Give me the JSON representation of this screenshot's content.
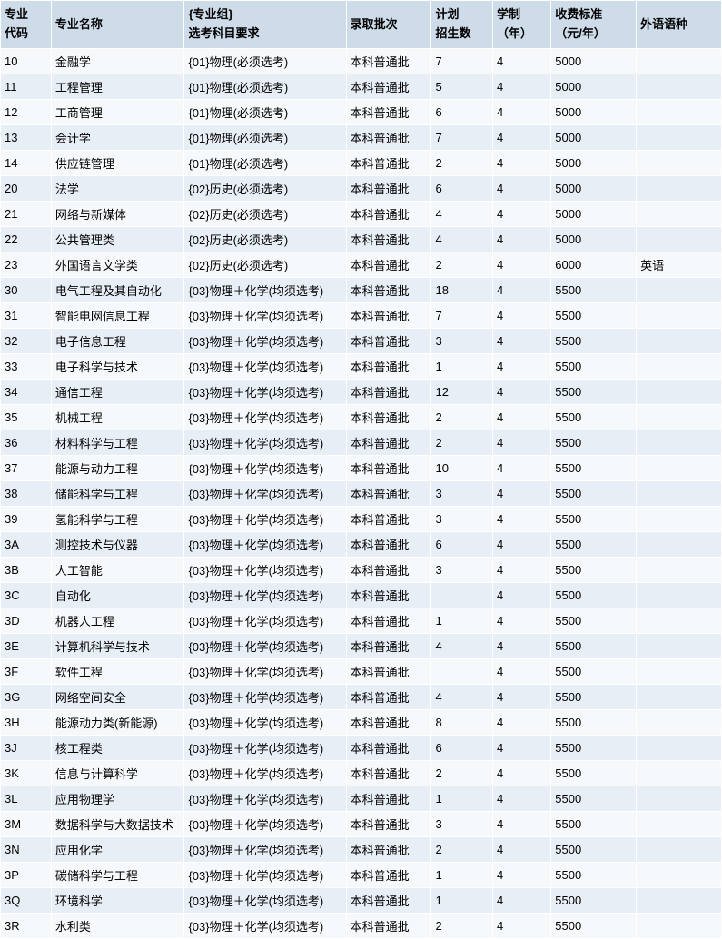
{
  "table": {
    "header_bg": "#cedbe9",
    "row_odd_bg": "#f6f9fc",
    "row_even_bg": "#e8eef6",
    "border_color": "#ffffff",
    "font_size": 13,
    "columns": [
      {
        "label_line1": "专业",
        "label_line2": "代码",
        "width": 44
      },
      {
        "label_line1": "专业名称",
        "label_line2": "",
        "width": 130
      },
      {
        "label_line1": "{专业组}",
        "label_line2": "选考科目要求",
        "width": 160
      },
      {
        "label_line1": "录取批次",
        "label_line2": "",
        "width": 80
      },
      {
        "label_line1": "计划",
        "label_line2": "招生数",
        "width": 55
      },
      {
        "label_line1": "学制",
        "label_line2": "（年）",
        "width": 52
      },
      {
        "label_line1": "收费标准",
        "label_line2": "（元/年）",
        "width": 80
      },
      {
        "label_line1": "外语语种",
        "label_line2": "",
        "width": 80
      }
    ],
    "rows": [
      [
        "10",
        "金融学",
        "{01}物理(必须选考)",
        "本科普通批",
        "7",
        "4",
        "5000",
        ""
      ],
      [
        "11",
        "工程管理",
        "{01}物理(必须选考)",
        "本科普通批",
        "5",
        "4",
        "5000",
        ""
      ],
      [
        "12",
        "工商管理",
        "{01}物理(必须选考)",
        "本科普通批",
        "6",
        "4",
        "5000",
        ""
      ],
      [
        "13",
        "会计学",
        "{01}物理(必须选考)",
        "本科普通批",
        "7",
        "4",
        "5000",
        ""
      ],
      [
        "14",
        "供应链管理",
        "{01}物理(必须选考)",
        "本科普通批",
        "2",
        "4",
        "5000",
        ""
      ],
      [
        "20",
        "法学",
        "{02}历史(必须选考)",
        "本科普通批",
        "6",
        "4",
        "5000",
        ""
      ],
      [
        "21",
        "网络与新媒体",
        "{02}历史(必须选考)",
        "本科普通批",
        "4",
        "4",
        "5000",
        ""
      ],
      [
        "22",
        "公共管理类",
        "{02}历史(必须选考)",
        "本科普通批",
        "4",
        "4",
        "5000",
        ""
      ],
      [
        "23",
        "外国语言文学类",
        "{02}历史(必须选考)",
        "本科普通批",
        "2",
        "4",
        "6000",
        "英语"
      ],
      [
        "30",
        "电气工程及其自动化",
        "{03}物理＋化学(均须选考)",
        "本科普通批",
        "18",
        "4",
        "5500",
        ""
      ],
      [
        "31",
        "智能电网信息工程",
        "{03}物理＋化学(均须选考)",
        "本科普通批",
        "7",
        "4",
        "5500",
        ""
      ],
      [
        "32",
        "电子信息工程",
        "{03}物理＋化学(均须选考)",
        "本科普通批",
        "3",
        "4",
        "5500",
        ""
      ],
      [
        "33",
        "电子科学与技术",
        "{03}物理＋化学(均须选考)",
        "本科普通批",
        "1",
        "4",
        "5500",
        ""
      ],
      [
        "34",
        "通信工程",
        "{03}物理＋化学(均须选考)",
        "本科普通批",
        "12",
        "4",
        "5500",
        ""
      ],
      [
        "35",
        "机械工程",
        "{03}物理＋化学(均须选考)",
        "本科普通批",
        "2",
        "4",
        "5500",
        ""
      ],
      [
        "36",
        "材料科学与工程",
        "{03}物理＋化学(均须选考)",
        "本科普通批",
        "2",
        "4",
        "5500",
        ""
      ],
      [
        "37",
        "能源与动力工程",
        "{03}物理＋化学(均须选考)",
        "本科普通批",
        "10",
        "4",
        "5500",
        ""
      ],
      [
        "38",
        "储能科学与工程",
        "{03}物理＋化学(均须选考)",
        "本科普通批",
        "3",
        "4",
        "5500",
        ""
      ],
      [
        "39",
        "氢能科学与工程",
        "{03}物理＋化学(均须选考)",
        "本科普通批",
        "3",
        "4",
        "5500",
        ""
      ],
      [
        "3A",
        "测控技术与仪器",
        "{03}物理＋化学(均须选考)",
        "本科普通批",
        "6",
        "4",
        "5500",
        ""
      ],
      [
        "3B",
        "人工智能",
        "{03}物理＋化学(均须选考)",
        "本科普通批",
        "3",
        "4",
        "5500",
        ""
      ],
      [
        "3C",
        "自动化",
        "{03}物理＋化学(均须选考)",
        "本科普通批",
        "",
        "4",
        "5500",
        ""
      ],
      [
        "3D",
        "机器人工程",
        "{03}物理＋化学(均须选考)",
        "本科普通批",
        "1",
        "4",
        "5500",
        ""
      ],
      [
        "3E",
        "计算机科学与技术",
        "{03}物理＋化学(均须选考)",
        "本科普通批",
        "4",
        "4",
        "5500",
        ""
      ],
      [
        "3F",
        "软件工程",
        "{03}物理＋化学(均须选考)",
        "本科普通批",
        "",
        "4",
        "5500",
        ""
      ],
      [
        "3G",
        "网络空间安全",
        "{03}物理＋化学(均须选考)",
        "本科普通批",
        "4",
        "4",
        "5500",
        ""
      ],
      [
        "3H",
        "能源动力类(新能源)",
        "{03}物理＋化学(均须选考)",
        "本科普通批",
        "8",
        "4",
        "5500",
        ""
      ],
      [
        "3J",
        "核工程类",
        "{03}物理＋化学(均须选考)",
        "本科普通批",
        "6",
        "4",
        "5500",
        ""
      ],
      [
        "3K",
        "信息与计算科学",
        "{03}物理＋化学(均须选考)",
        "本科普通批",
        "2",
        "4",
        "5500",
        ""
      ],
      [
        "3L",
        "应用物理学",
        "{03}物理＋化学(均须选考)",
        "本科普通批",
        "1",
        "4",
        "5500",
        ""
      ],
      [
        "3M",
        "数据科学与大数据技术",
        "{03}物理＋化学(均须选考)",
        "本科普通批",
        "3",
        "4",
        "5500",
        ""
      ],
      [
        "3N",
        "应用化学",
        "{03}物理＋化学(均须选考)",
        "本科普通批",
        "2",
        "4",
        "5500",
        ""
      ],
      [
        "3P",
        "碳储科学与工程",
        "{03}物理＋化学(均须选考)",
        "本科普通批",
        "1",
        "4",
        "5500",
        ""
      ],
      [
        "3Q",
        "环境科学",
        "{03}物理＋化学(均须选考)",
        "本科普通批",
        "1",
        "4",
        "5500",
        ""
      ],
      [
        "3R",
        "水利类",
        "{03}物理＋化学(均须选考)",
        "本科普通批",
        "2",
        "4",
        "5500",
        ""
      ]
    ]
  }
}
